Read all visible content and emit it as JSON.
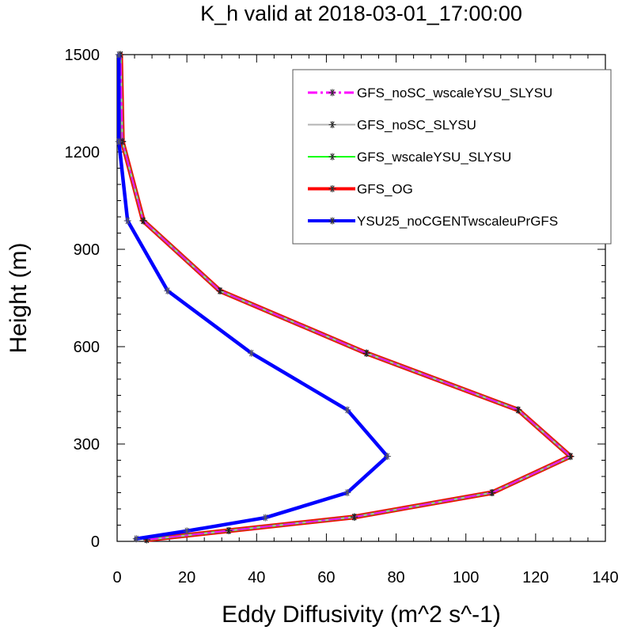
{
  "chart_data": {
    "type": "line",
    "title": "K_h valid at 2018-03-01_17:00:00",
    "xlabel": "Eddy Diffusivity (m^2 s^-1)",
    "ylabel": "Height (m)",
    "xlim": [
      0,
      140
    ],
    "ylim": [
      0,
      1500
    ],
    "xticks": [
      "0",
      "20",
      "40",
      "60",
      "80",
      "100",
      "120",
      "140"
    ],
    "yticks": [
      "0",
      "300",
      "600",
      "900",
      "1200",
      "1500"
    ],
    "grid": false,
    "legend_position": "top-right",
    "series": [
      {
        "name": "GFS_noSC_wscaleYSU_SLYSU",
        "color": "#ff00ff",
        "style": "dashed",
        "marker": "asterisk",
        "points": [
          [
            8.5,
            5
          ],
          [
            32,
            33
          ],
          [
            68,
            75
          ],
          [
            107.5,
            150
          ],
          [
            130,
            262
          ],
          [
            115,
            405
          ],
          [
            71.5,
            580
          ],
          [
            29.5,
            772
          ],
          [
            7.5,
            988
          ],
          [
            1.5,
            1232
          ],
          [
            1,
            1500
          ]
        ]
      },
      {
        "name": "GFS_noSC_SLYSU",
        "color": "#b3b3b3",
        "style": "solid",
        "marker": "asterisk",
        "points": [
          [
            8.5,
            5
          ],
          [
            32,
            33
          ],
          [
            68,
            75
          ],
          [
            107.5,
            150
          ],
          [
            130,
            262
          ],
          [
            115,
            405
          ],
          [
            71.5,
            580
          ],
          [
            29.5,
            772
          ],
          [
            7.5,
            988
          ],
          [
            1.5,
            1232
          ],
          [
            1,
            1500
          ]
        ]
      },
      {
        "name": "GFS_wscaleYSU_SLYSU",
        "color": "#00ff00",
        "style": "solid",
        "marker": "asterisk",
        "points": [
          [
            8.5,
            5
          ],
          [
            32,
            33
          ],
          [
            68,
            75
          ],
          [
            107.5,
            150
          ],
          [
            130,
            262
          ],
          [
            115,
            405
          ],
          [
            71.5,
            580
          ],
          [
            29.5,
            772
          ],
          [
            7.5,
            988
          ],
          [
            1.5,
            1232
          ],
          [
            1,
            1500
          ]
        ]
      },
      {
        "name": "GFS_OG",
        "color": "#ff0000",
        "style": "solid",
        "marker": "asterisk",
        "points": [
          [
            8.5,
            5
          ],
          [
            32,
            33
          ],
          [
            68,
            75
          ],
          [
            107.5,
            150
          ],
          [
            130,
            262
          ],
          [
            115,
            405
          ],
          [
            71.5,
            580
          ],
          [
            29.5,
            772
          ],
          [
            7.5,
            988
          ],
          [
            1.5,
            1232
          ],
          [
            1,
            1500
          ]
        ]
      },
      {
        "name": "YSU25_noCGENTwscaleuPrGFS",
        "color": "#0000ff",
        "style": "solid",
        "marker": "asterisk",
        "points": [
          [
            5.5,
            8
          ],
          [
            20,
            32
          ],
          [
            42.5,
            73
          ],
          [
            66,
            150
          ],
          [
            77.5,
            262
          ],
          [
            66,
            405
          ],
          [
            38.5,
            580
          ],
          [
            14.5,
            772
          ],
          [
            3,
            988
          ],
          [
            0.5,
            1232
          ],
          [
            0.5,
            1500
          ]
        ]
      }
    ]
  }
}
